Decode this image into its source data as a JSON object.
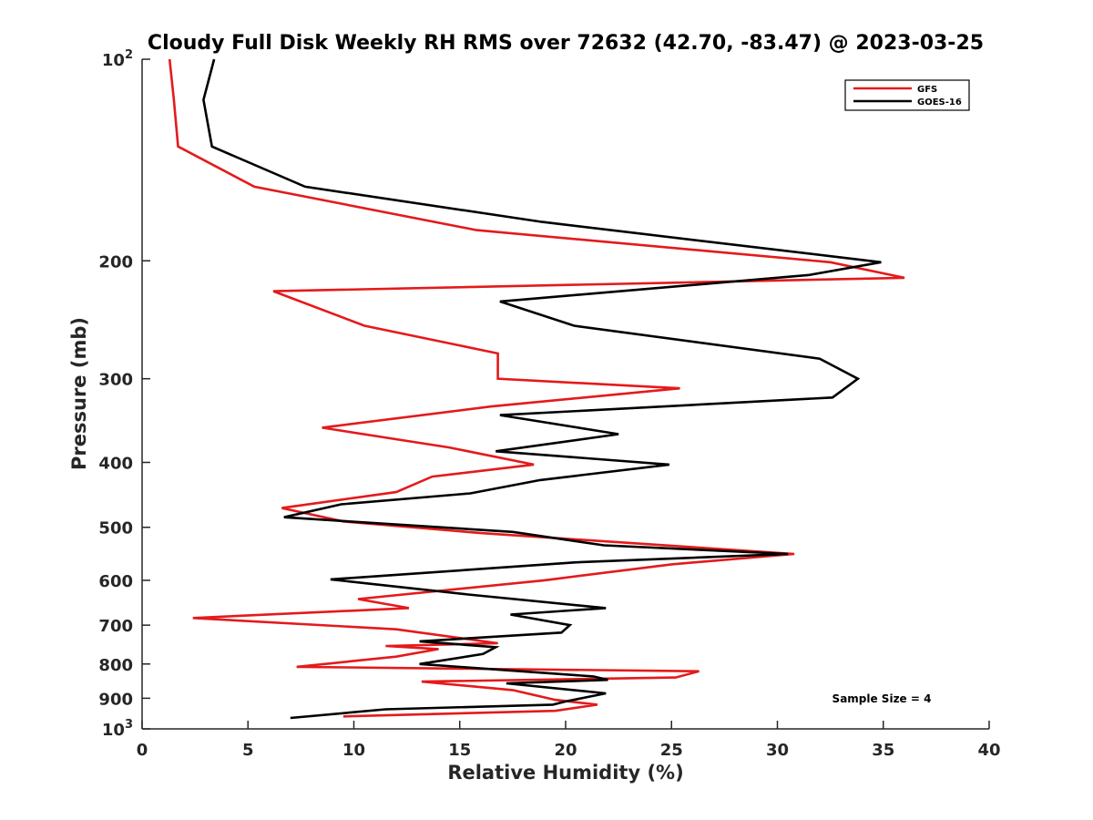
{
  "chart_data": {
    "type": "line",
    "title": "Cloudy Full Disk Weekly RH RMS over 72632 (42.70, -83.47) @ 2023-03-25",
    "xlabel": "Relative Humidity (%)",
    "ylabel": "Pressure (mb)",
    "xlim": [
      0,
      40
    ],
    "ylim": [
      100,
      1000
    ],
    "yscale": "log",
    "y_reversed": true,
    "x_ticks": [
      "0",
      "5",
      "10",
      "15",
      "20",
      "25",
      "30",
      "35",
      "40"
    ],
    "y_ticks": [
      {
        "value": 100,
        "base": "10",
        "exp": "2"
      },
      {
        "value": 200,
        "label": "200"
      },
      {
        "value": 300,
        "label": "300"
      },
      {
        "value": 400,
        "label": "400"
      },
      {
        "value": 500,
        "label": "500"
      },
      {
        "value": 600,
        "label": "600"
      },
      {
        "value": 700,
        "label": "700"
      },
      {
        "value": 800,
        "label": "800"
      },
      {
        "value": 900,
        "label": "900"
      },
      {
        "value": 1000,
        "base": "10",
        "exp": "3"
      }
    ],
    "grid": false,
    "legend_position": "top-right",
    "series": [
      {
        "name": "GFS",
        "color": "#e41a1c",
        "x": [
          1.3,
          1.5,
          1.7,
          5.3,
          15.8,
          32.5,
          36.0,
          6.2,
          10.5,
          16.8,
          16.8,
          25.4,
          16.5,
          8.5,
          14.5,
          18.5,
          13.7,
          12.0,
          6.6,
          9.5,
          16.0,
          30.8,
          25.0,
          19.0,
          10.2,
          12.6,
          2.4,
          12.0,
          16.8,
          11.5,
          14.0,
          12.0,
          7.3,
          26.3,
          25.2,
          13.2,
          17.5,
          19.5,
          21.5,
          19.5,
          9.5
        ],
        "y": [
          100,
          115,
          135,
          155,
          180,
          201,
          212,
          222,
          250,
          275,
          300,
          310,
          330,
          355,
          380,
          403,
          420,
          443,
          468,
          490,
          510,
          548,
          568,
          600,
          640,
          660,
          683,
          710,
          745,
          752,
          760,
          780,
          808,
          820,
          838,
          850,
          875,
          905,
          920,
          940,
          958
        ]
      },
      {
        "name": "GOES-16",
        "color": "#000000",
        "x": [
          3.4,
          2.9,
          3.3,
          7.7,
          18.9,
          34.9,
          31.5,
          16.9,
          20.4,
          32.0,
          33.8,
          32.6,
          16.9,
          22.5,
          16.7,
          24.9,
          18.8,
          15.5,
          9.4,
          6.7,
          17.5,
          21.8,
          30.5,
          20.5,
          8.9,
          15.4,
          21.9,
          17.4,
          20.2,
          19.8,
          13.1,
          16.7,
          16.1,
          13.1,
          21.3,
          22.0,
          17.2,
          21.9,
          20.0,
          19.4,
          11.5,
          7.0
        ],
        "y": [
          100,
          115,
          135,
          155,
          175,
          201,
          210,
          230,
          250,
          280,
          300,
          320,
          340,
          363,
          385,
          403,
          425,
          445,
          462,
          483,
          508,
          532,
          548,
          564,
          598,
          630,
          660,
          675,
          700,
          718,
          740,
          755,
          773,
          800,
          835,
          845,
          855,
          885,
          910,
          920,
          935,
          963
        ]
      }
    ],
    "annotation": "Sample Size = 4"
  }
}
